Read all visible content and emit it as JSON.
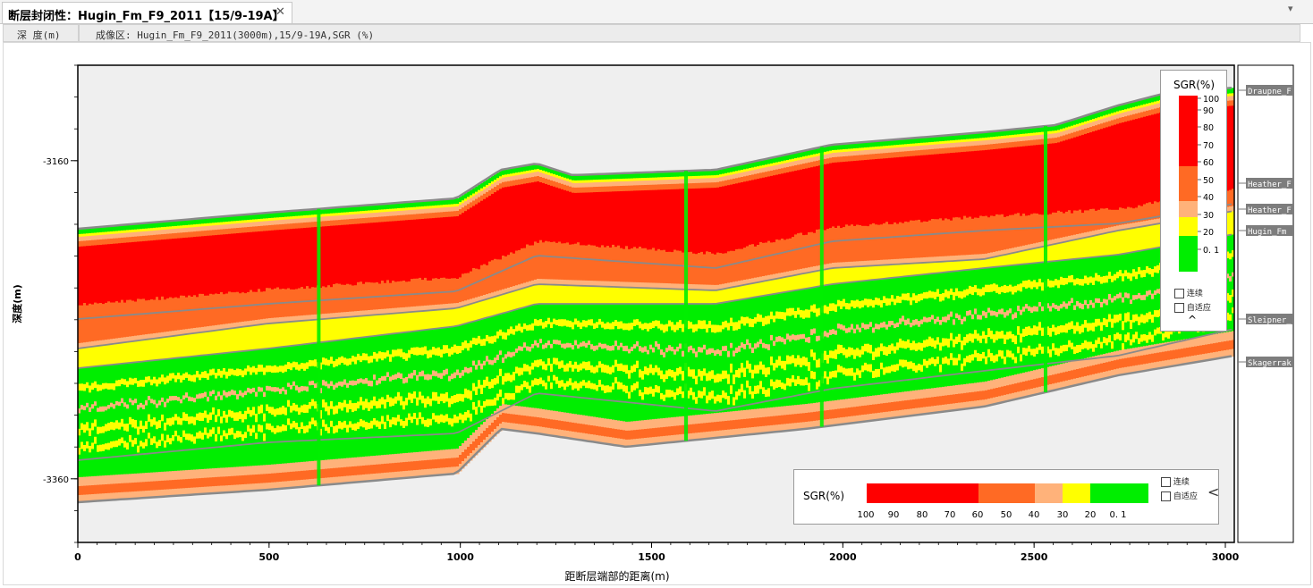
{
  "window": {
    "tab_title": "断层封闭性：Hugin_Fm_F9_2011【15/9-19A】",
    "close_glyph": "✕",
    "collapse_glyph": "▾"
  },
  "header": {
    "depth_col": "深 度(m)",
    "imaging_col": "成像区: Hugin_Fm_F9_2011(3000m),15/9-19A,SGR (%)"
  },
  "colors": {
    "c100": "#ff0000",
    "c60": "#ff6a24",
    "c40": "#ffb27a",
    "c30": "#ffff00",
    "c20": "#00ee00",
    "background": "#efefef",
    "horizon_line": "#8a8a8a"
  },
  "chart_data": {
    "type": "heatmap",
    "title": "",
    "xlabel": "距断层端部的距离(m)",
    "ylabel": "深度(m)",
    "xlim": [
      0,
      3000
    ],
    "ylim": [
      -3400,
      -3100
    ],
    "x_ticks": [
      "0",
      "500",
      "1000",
      "1500",
      "2000",
      "2500",
      "3000"
    ],
    "y_ticks": [
      "-3160",
      "-3360"
    ],
    "color_scale": {
      "name": "SGR(%)",
      "labels": [
        "100",
        "90",
        "80",
        "70",
        "60",
        "50",
        "40",
        "30",
        "20",
        "0. 1"
      ]
    },
    "formations": [
      "Draupne_F",
      "Heather_F",
      "Heather_F",
      "Hugin_Fm",
      "Sleipner_",
      "Skagerrak"
    ],
    "wells_x": [
      630,
      1590,
      1945,
      2530
    ]
  },
  "legend_vertical": {
    "title": "SGR(%)",
    "continuous_label": "连续",
    "adaptive_label": "自适应",
    "toggle_glyph": "^"
  },
  "legend_horizontal": {
    "title": "SGR(%)",
    "continuous_label": "连续",
    "adaptive_label": "自适应",
    "toggle_glyph": "<"
  }
}
